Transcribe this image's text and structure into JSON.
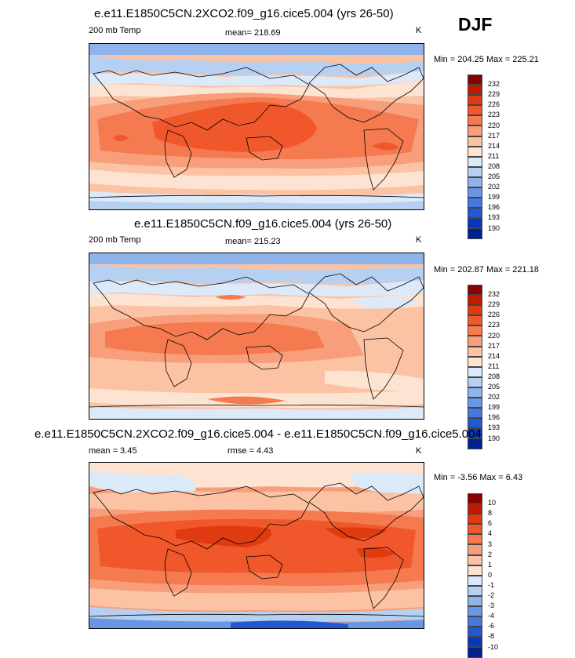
{
  "season": "DJF",
  "panels": [
    {
      "title": "e.e11.E1850C5CN.2XCO2.f09_g16.cice5.004 (yrs 26-50)",
      "variable": "200 mb Temp",
      "mean_text": "mean= 218.69",
      "units": "K",
      "minmax": "Min = 204.25 Max = 225.21"
    },
    {
      "title": "e.e11.E1850C5CN.f09_g16.cice5.004 (yrs 26-50)",
      "variable": "200 mb Temp",
      "mean_text": "mean= 215.23",
      "units": "K",
      "minmax": "Min = 202.87 Max = 221.18"
    },
    {
      "title": "e.e11.E1850C5CN.2XCO2.f09_g16.cice5.004 - e.e11.E1850C5CN.f09_g16.cice5.004",
      "mean_text": "mean =   3.45",
      "rmse_text": "rmse =   4.43",
      "units": "K",
      "minmax": "Min =  -3.56 Max =   6.43"
    }
  ],
  "chart_data": [
    {
      "type": "heatmap",
      "title": "e.e11.E1850C5CN.2XCO2.f09_g16.cice5.004 (yrs 26-50)",
      "variable": "200 mb Temp",
      "units": "K",
      "mean": 218.69,
      "min": 204.25,
      "max": 225.21,
      "colorbar_levels": [
        232,
        229,
        226,
        223,
        220,
        217,
        214,
        211,
        208,
        205,
        202,
        199,
        196,
        193,
        190
      ],
      "colorbar_colors": [
        "#8b0000",
        "#c21a00",
        "#e03a10",
        "#f0582c",
        "#f57a50",
        "#f89e7a",
        "#fbc2a4",
        "#fde4d2",
        "#dce9f8",
        "#b6d0f2",
        "#8fb4ec",
        "#6a96e6",
        "#4678df",
        "#2258d2",
        "#0438c0",
        "#00208f"
      ]
    },
    {
      "type": "heatmap",
      "title": "e.e11.E1850C5CN.f09_g16.cice5.004 (yrs 26-50)",
      "variable": "200 mb Temp",
      "units": "K",
      "mean": 215.23,
      "min": 202.87,
      "max": 221.18,
      "colorbar_levels": [
        232,
        229,
        226,
        223,
        220,
        217,
        214,
        211,
        208,
        205,
        202,
        199,
        196,
        193,
        190
      ],
      "colorbar_colors": [
        "#8b0000",
        "#c21a00",
        "#e03a10",
        "#f0582c",
        "#f57a50",
        "#f89e7a",
        "#fbc2a4",
        "#fde4d2",
        "#dce9f8",
        "#b6d0f2",
        "#8fb4ec",
        "#6a96e6",
        "#4678df",
        "#2258d2",
        "#0438c0",
        "#00208f"
      ]
    },
    {
      "type": "heatmap",
      "title": "e.e11.E1850C5CN.2XCO2.f09_g16.cice5.004 - e.e11.E1850C5CN.f09_g16.cice5.004",
      "units": "K",
      "mean": 3.45,
      "rmse": 4.43,
      "min": -3.56,
      "max": 6.43,
      "colorbar_levels": [
        10,
        8,
        6,
        4,
        3,
        2,
        1,
        0,
        -1,
        -2,
        -3,
        -4,
        -6,
        -8,
        -10
      ],
      "colorbar_colors": [
        "#8b0000",
        "#c21a00",
        "#e03a10",
        "#f0582c",
        "#f57a50",
        "#f89e7a",
        "#fbc2a4",
        "#fde4d2",
        "#dce9f8",
        "#b6d0f2",
        "#8fb4ec",
        "#6a96e6",
        "#4678df",
        "#2258d2",
        "#0438c0",
        "#00208f"
      ]
    }
  ]
}
